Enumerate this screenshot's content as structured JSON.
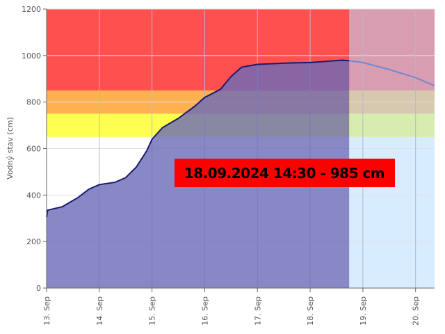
{
  "chart_data": {
    "type": "line",
    "y_label": "Vodný stav (cm)",
    "annotation": "18.09.2024 14:30 - 985 cm",
    "xlim": [
      13,
      20.36
    ],
    "ylim": [
      0,
      1200
    ],
    "yticks": [
      0,
      200,
      400,
      600,
      800,
      1000,
      1200
    ],
    "xticks": [
      {
        "value": 13,
        "label": "13. Sep"
      },
      {
        "value": 14,
        "label": "14. Sep"
      },
      {
        "value": 15,
        "label": "15. Sep"
      },
      {
        "value": 16,
        "label": "16. Sep"
      },
      {
        "value": 17,
        "label": "17. Sep"
      },
      {
        "value": 18,
        "label": "18. Sep"
      },
      {
        "value": 19,
        "label": "19. Sep"
      },
      {
        "value": 20,
        "label": "20. Sep"
      }
    ],
    "grid": true,
    "bands": [
      {
        "from": 650,
        "to": 750,
        "color": "#ffff50"
      },
      {
        "from": 750,
        "to": 850,
        "color": "#ffb050"
      },
      {
        "from": 850,
        "to": 1200,
        "color": "#ff5050"
      }
    ],
    "series": [
      {
        "color": "#1a1a6e",
        "fill": "#6a6ab8",
        "x": [
          13,
          13.02,
          13.3,
          13.6,
          13.8,
          14,
          14.3,
          14.5,
          14.7,
          14.9,
          15,
          15.2,
          15.5,
          15.8,
          16,
          16.3,
          16.5,
          16.7,
          17,
          17.3,
          17.6,
          18,
          18.3,
          18.6,
          18.74
        ],
        "values": [
          305,
          335,
          350,
          390,
          425,
          445,
          455,
          475,
          520,
          590,
          640,
          690,
          730,
          780,
          820,
          855,
          910,
          950,
          962,
          965,
          968,
          970,
          975,
          980,
          978
        ]
      },
      {
        "color": "#7088d0",
        "fill": "#b8dcff",
        "x": [
          18.74,
          19,
          19.5,
          20,
          20.36
        ],
        "values": [
          978,
          970,
          940,
          905,
          870
        ]
      }
    ]
  }
}
